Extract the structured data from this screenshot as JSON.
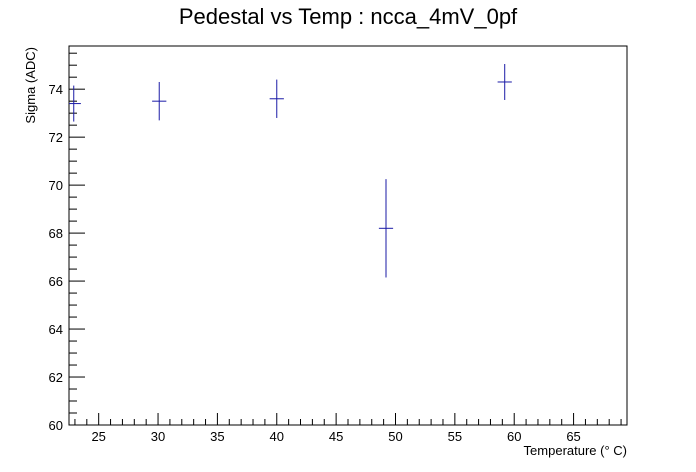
{
  "chart_data": {
    "type": "scatter",
    "title": "Pedestal vs Temp : ncca_4mV_0pf",
    "xlabel": "Temperature (° C)",
    "ylabel": "Sigma (ADC)",
    "xlim": [
      22.5,
      69.5
    ],
    "ylim": [
      60,
      75.8
    ],
    "x_ticks": [
      25,
      30,
      35,
      40,
      45,
      50,
      55,
      60,
      65
    ],
    "y_ticks": [
      60,
      62,
      64,
      66,
      68,
      70,
      72,
      74
    ],
    "grid": false,
    "marker_color": "#1a1aa6",
    "points": [
      {
        "x": 22.9,
        "y": 73.4,
        "xerr": 0.6,
        "yerr": 0.75
      },
      {
        "x": 30.1,
        "y": 73.5,
        "xerr": 0.6,
        "yerr": 0.8
      },
      {
        "x": 40.0,
        "y": 73.6,
        "xerr": 0.6,
        "yerr": 0.8
      },
      {
        "x": 49.2,
        "y": 68.2,
        "xerr": 0.6,
        "yerr": 2.05
      },
      {
        "x": 59.2,
        "y": 74.3,
        "xerr": 0.6,
        "yerr": 0.75
      }
    ]
  }
}
